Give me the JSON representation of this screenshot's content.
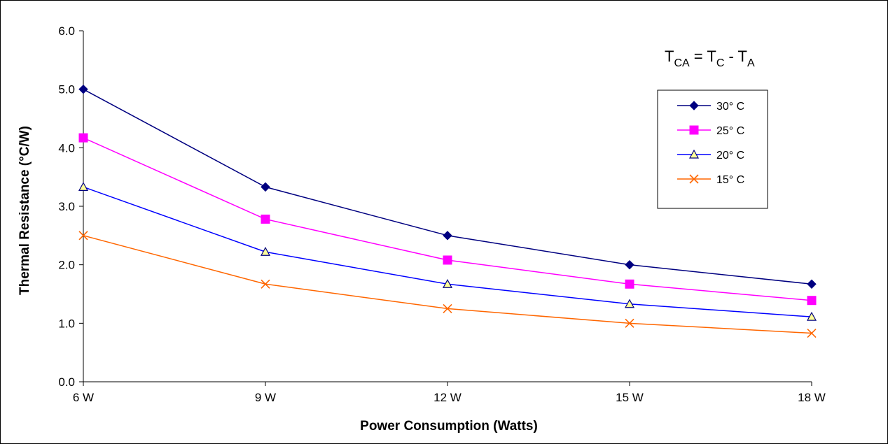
{
  "chart_data": {
    "type": "line",
    "title": "",
    "xlabel": "Power Consumption (Watts)",
    "ylabel": "Thermal Resistance (°C/W)",
    "categories": [
      "6 W",
      "9 W",
      "12 W",
      "15 W",
      "18 W"
    ],
    "y_ticks": [
      "0.0",
      "1.0",
      "2.0",
      "3.0",
      "4.0",
      "5.0",
      "6.0"
    ],
    "ylim": [
      0,
      6
    ],
    "grid": false,
    "legend_position": "top-right",
    "series": [
      {
        "name": "30° C",
        "values": [
          5.0,
          3.33,
          2.5,
          2.0,
          1.67
        ],
        "color": "#000080",
        "marker": "diamond"
      },
      {
        "name": "25° C",
        "values": [
          4.17,
          2.78,
          2.08,
          1.67,
          1.39
        ],
        "color": "#ff00ff",
        "marker": "square"
      },
      {
        "name": "20° C",
        "values": [
          3.33,
          2.22,
          1.67,
          1.33,
          1.11
        ],
        "color": "#0000ff",
        "marker": "triangle"
      },
      {
        "name": "15° C",
        "values": [
          2.5,
          1.67,
          1.25,
          1.0,
          0.83
        ],
        "color": "#ff6600",
        "marker": "x"
      }
    ],
    "annotation": {
      "t1": "T",
      "s1": "CA",
      "eq": " = ",
      "t2": "T",
      "s2": "C",
      "minus": " - ",
      "t3": "T",
      "s3": "A"
    }
  }
}
